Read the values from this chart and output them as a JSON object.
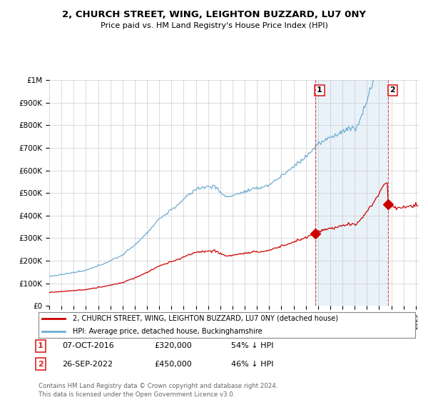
{
  "title": "2, CHURCH STREET, WING, LEIGHTON BUZZARD, LU7 0NY",
  "subtitle": "Price paid vs. HM Land Registry's House Price Index (HPI)",
  "hpi_color": "#6dadd1",
  "hpi_fill_color": "#ddeeff",
  "price_color": "#cc0000",
  "marker_color": "#cc0000",
  "background_color": "#ffffff",
  "grid_color": "#cccccc",
  "ylim": [
    0,
    1000000
  ],
  "yticks": [
    0,
    100000,
    200000,
    300000,
    400000,
    500000,
    600000,
    700000,
    800000,
    900000,
    1000000
  ],
  "ytick_labels": [
    "£0",
    "£100K",
    "£200K",
    "£300K",
    "£400K",
    "£500K",
    "£600K",
    "£700K",
    "£800K",
    "£900K",
    "£1M"
  ],
  "sale1_year": 2016.75,
  "sale1_price": 320000,
  "sale1_label": "1",
  "sale2_year": 2022.72,
  "sale2_price": 450000,
  "sale2_label": "2",
  "sale1_date": "07-OCT-2016",
  "sale2_date": "26-SEP-2022",
  "sale1_pct": "54% ↓ HPI",
  "sale2_pct": "46% ↓ HPI",
  "legend_label1": "2, CHURCH STREET, WING, LEIGHTON BUZZARD, LU7 0NY (detached house)",
  "legend_label2": "HPI: Average price, detached house, Buckinghamshire",
  "footer": "Contains HM Land Registry data © Crown copyright and database right 2024.\nThis data is licensed under the Open Government Licence v3.0.",
  "vline_color": "#dd2222",
  "xlim_start": 1995,
  "xlim_end": 2025.3
}
